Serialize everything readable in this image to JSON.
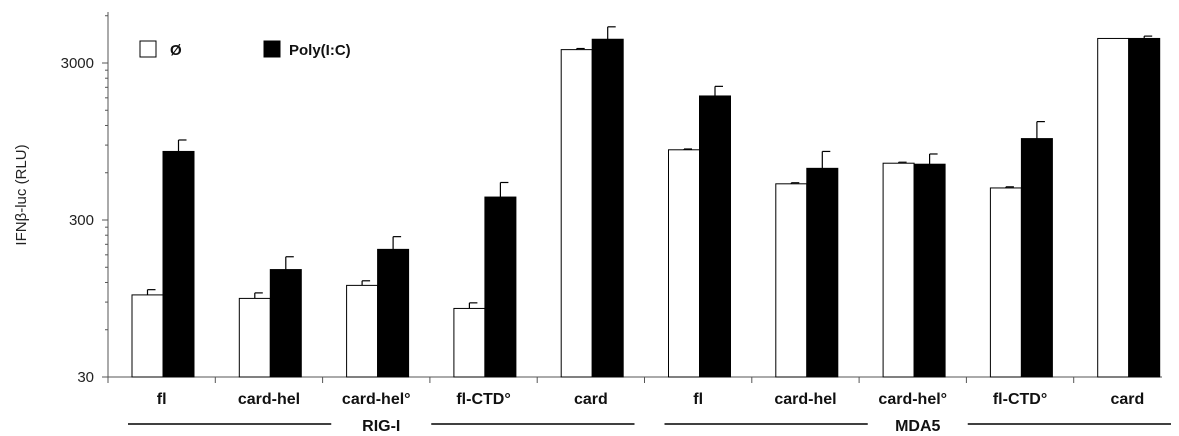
{
  "chart_data": {
    "type": "bar",
    "ylabel": "IFNβ-luc (RLU)",
    "yscale": "log",
    "ylim": [
      30,
      6000
    ],
    "yticks": [
      "30",
      "300",
      "3000"
    ],
    "categories": [
      "fl",
      "card-hel",
      "card-hel°",
      "fl-CTD°",
      "card",
      "fl",
      "card-hel",
      "card-hel°",
      "fl-CTD°",
      "card"
    ],
    "groups": [
      {
        "label": "RIG-I",
        "categories": [
          0,
          1,
          2,
          3,
          4
        ]
      },
      {
        "label": "MDA5",
        "categories": [
          5,
          6,
          7,
          8,
          9
        ]
      }
    ],
    "series": [
      {
        "name": "Ø",
        "color": "#ffffff",
        "values": [
          100,
          95,
          115,
          82,
          3650,
          840,
          510,
          690,
          480,
          4300
        ],
        "errors": [
          8,
          8,
          8,
          7,
          60,
          10,
          8,
          10,
          8,
          0
        ]
      },
      {
        "name": "Poly(I:C)",
        "color": "#000000",
        "values": [
          820,
          145,
          195,
          420,
          4250,
          1850,
          640,
          680,
          990,
          4300
        ],
        "errors": [
          150,
          30,
          40,
          100,
          850,
          280,
          180,
          110,
          280,
          150
        ]
      }
    ],
    "legend": "top-left",
    "grid": false
  }
}
